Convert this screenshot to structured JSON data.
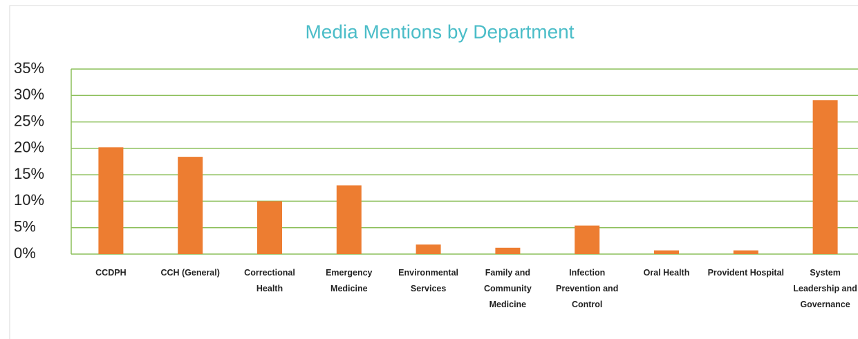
{
  "chart_data": {
    "type": "bar",
    "title": "Media Mentions by Department",
    "categories": [
      "CCDPH",
      "CCH (General)",
      "Correctional Health",
      "Emergency Medicine",
      "Environmental Services",
      "Family and Community Medicine",
      "Infection Prevention and Control",
      "Oral Health",
      "Provident Hospital",
      "System Leadership and Governance"
    ],
    "values": [
      20.2,
      18.4,
      10.0,
      13.0,
      1.8,
      1.2,
      5.4,
      0.7,
      0.7,
      29.1
    ],
    "color": "#ed7d31",
    "ylim": [
      0,
      35
    ],
    "yticks": [
      {
        "value": 0,
        "label": "0%"
      },
      {
        "value": 5,
        "label": "5%"
      },
      {
        "value": 10,
        "label": "10%"
      },
      {
        "value": 15,
        "label": "15%"
      },
      {
        "value": 20,
        "label": "20%"
      },
      {
        "value": 25,
        "label": "25%"
      },
      {
        "value": 30,
        "label": "30%"
      },
      {
        "value": 35,
        "label": "35%"
      }
    ],
    "grid": true,
    "grid_color": "#8cbf5a"
  }
}
